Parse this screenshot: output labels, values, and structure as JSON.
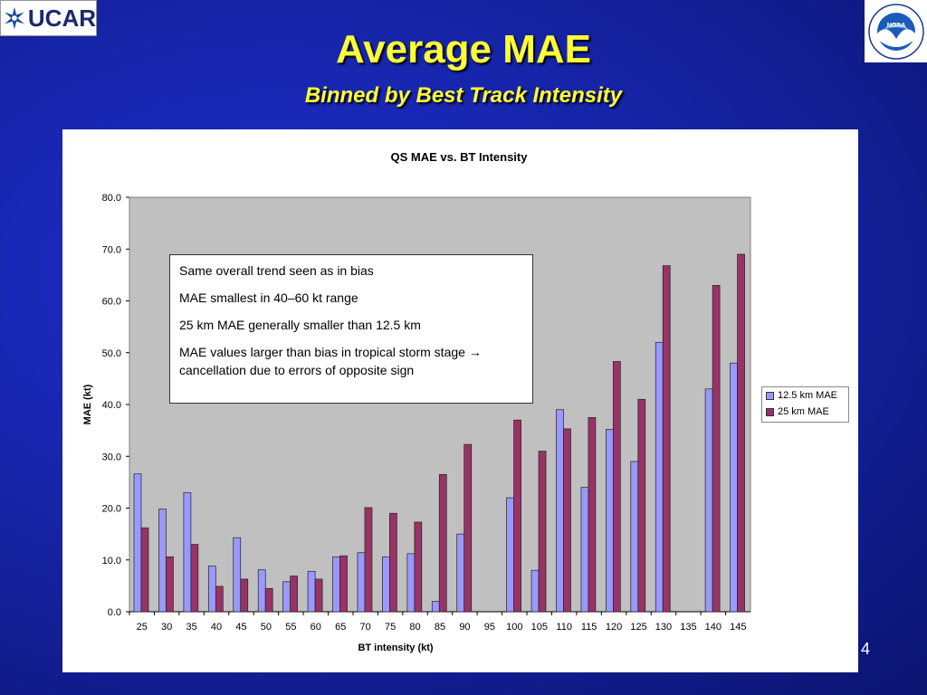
{
  "header": {
    "logo_left_text": "UCAR",
    "logo_right_text": "NOAA",
    "title": "Average MAE",
    "subtitle": "Binned by Best Track Intensity"
  },
  "slide_number": "4",
  "annotation": {
    "line1": "Same overall trend seen as in bias",
    "line2": "MAE smallest in 40–60 kt range",
    "line3": "25 km MAE generally smaller than 12.5 km",
    "line4": "MAE values larger than bias in tropical storm stage → cancellation due to errors of opposite sign"
  },
  "colors": {
    "series1": "#9999ff",
    "series2": "#993366",
    "plot_bg": "#c0c0c0",
    "title_yellow": "#ffff33"
  },
  "chart_data": {
    "type": "bar",
    "title": "QS MAE vs. BT Intensity",
    "xlabel": "BT intensity (kt)",
    "ylabel": "MAE (kt)",
    "ylim": [
      0,
      80
    ],
    "yticks": [
      "0.0",
      "10.0",
      "20.0",
      "30.0",
      "40.0",
      "50.0",
      "60.0",
      "70.0",
      "80.0"
    ],
    "categories": [
      "25",
      "30",
      "35",
      "40",
      "45",
      "50",
      "55",
      "60",
      "65",
      "70",
      "75",
      "80",
      "85",
      "90",
      "95",
      "100",
      "105",
      "110",
      "115",
      "120",
      "125",
      "130",
      "135",
      "140",
      "145"
    ],
    "series": [
      {
        "name": "12.5 km MAE",
        "values": [
          26.6,
          19.8,
          23.0,
          8.8,
          14.3,
          8.1,
          5.8,
          7.8,
          10.6,
          11.4,
          10.6,
          11.2,
          2.0,
          15.0,
          null,
          22.0,
          8.0,
          39.0,
          24.0,
          35.2,
          29.0,
          52.0,
          null,
          43.0,
          48.0
        ]
      },
      {
        "name": "25 km MAE",
        "values": [
          16.2,
          10.6,
          13.0,
          4.9,
          6.3,
          4.5,
          6.9,
          6.3,
          10.8,
          20.1,
          19.0,
          17.3,
          26.5,
          32.3,
          null,
          37.0,
          31.0,
          35.3,
          37.5,
          48.3,
          41.0,
          66.8,
          null,
          63.0,
          69.0
        ]
      }
    ],
    "legend_position": "right",
    "grid": false
  }
}
